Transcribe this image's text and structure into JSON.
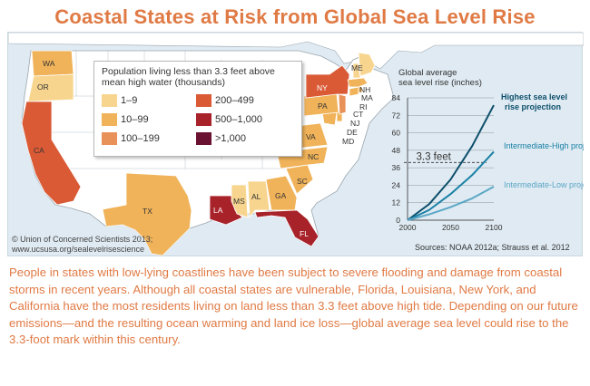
{
  "title": "Coastal States at Risk from Global Sea Level Rise",
  "legend": {
    "title": "Population living less than 3.3 feet above mean high water (thousands)",
    "items": [
      {
        "label": "1–9",
        "color": "#f7d58e"
      },
      {
        "label": "10–99",
        "color": "#f0b35a"
      },
      {
        "label": "100–199",
        "color": "#e8925a"
      },
      {
        "label": "200–499",
        "color": "#da5a36"
      },
      {
        "label": "500–1,000",
        "color": "#a8222a"
      },
      {
        "label": ">1,000",
        "color": "#6a1232"
      }
    ]
  },
  "map": {
    "ocean_color": "#dfeaf2",
    "land_color": "#ffffff",
    "states": [
      {
        "abbr": "WA",
        "category": "10–99"
      },
      {
        "abbr": "OR",
        "category": "1–9"
      },
      {
        "abbr": "CA",
        "category": "200–499"
      },
      {
        "abbr": "TX",
        "category": "10–99"
      },
      {
        "abbr": "LA",
        "category": "500–1,000"
      },
      {
        "abbr": "MS",
        "category": "1–9"
      },
      {
        "abbr": "AL",
        "category": "1–9"
      },
      {
        "abbr": "GA",
        "category": "10–99"
      },
      {
        "abbr": "FL",
        "category": ">1,000"
      },
      {
        "abbr": "SC",
        "category": "10–99"
      },
      {
        "abbr": "NC",
        "category": "10–99"
      },
      {
        "abbr": "VA",
        "category": "10–99"
      },
      {
        "abbr": "MD",
        "category": "10–99"
      },
      {
        "abbr": "DE",
        "category": "10–99"
      },
      {
        "abbr": "NJ",
        "category": "100–199"
      },
      {
        "abbr": "PA",
        "category": "10–99"
      },
      {
        "abbr": "NY",
        "category": "200–499"
      },
      {
        "abbr": "CT",
        "category": "10–99"
      },
      {
        "abbr": "RI",
        "category": "10–99"
      },
      {
        "abbr": "MA",
        "category": "10–99"
      },
      {
        "abbr": "NH",
        "category": "1–9"
      },
      {
        "abbr": "ME",
        "category": "1–9"
      }
    ]
  },
  "credit": {
    "line1": "© Union of Concerned Scientists 2013;",
    "line2": "www.ucsusa.org/sealevelrisescience"
  },
  "chart_data": {
    "type": "line",
    "title": "Global average sea level rise (inches)",
    "xlabel": "",
    "ylabel": "",
    "x": [
      2000,
      2025,
      2050,
      2075,
      2100
    ],
    "xticks": [
      2000,
      2050,
      2100
    ],
    "yticks": [
      0,
      12,
      24,
      36,
      48,
      60,
      72,
      84
    ],
    "xlim": [
      2000,
      2100
    ],
    "ylim": [
      0,
      84
    ],
    "grid": true,
    "series": [
      {
        "name": "Highest sea level rise projection",
        "values": [
          0,
          11,
          28,
          51,
          79
        ],
        "color": "#0d4f6b"
      },
      {
        "name": "Intermediate-High projection",
        "values": [
          0,
          7,
          18,
          31,
          47
        ],
        "color": "#1a81a5"
      },
      {
        "name": "Intermediate-Low projection",
        "values": [
          0,
          4,
          9,
          15,
          23
        ],
        "color": "#5ba7c6"
      }
    ],
    "reference": {
      "label": "3.3 feet",
      "value": 39.6
    },
    "source": "Sources: NOAA 2012a; Strauss et al. 2012"
  },
  "paragraph": "People in states with low-lying coastlines have been subject to severe flooding and damage from coastal storms in recent years. Although all coastal states are vulnerable, Florida, Louisiana, New York, and California have the most residents living on land less than 3.3 feet above high tide. Depending on our future emissions—and the resulting ocean warming and land ice loss—global average sea level could rise to the 3.3-foot mark within this century."
}
